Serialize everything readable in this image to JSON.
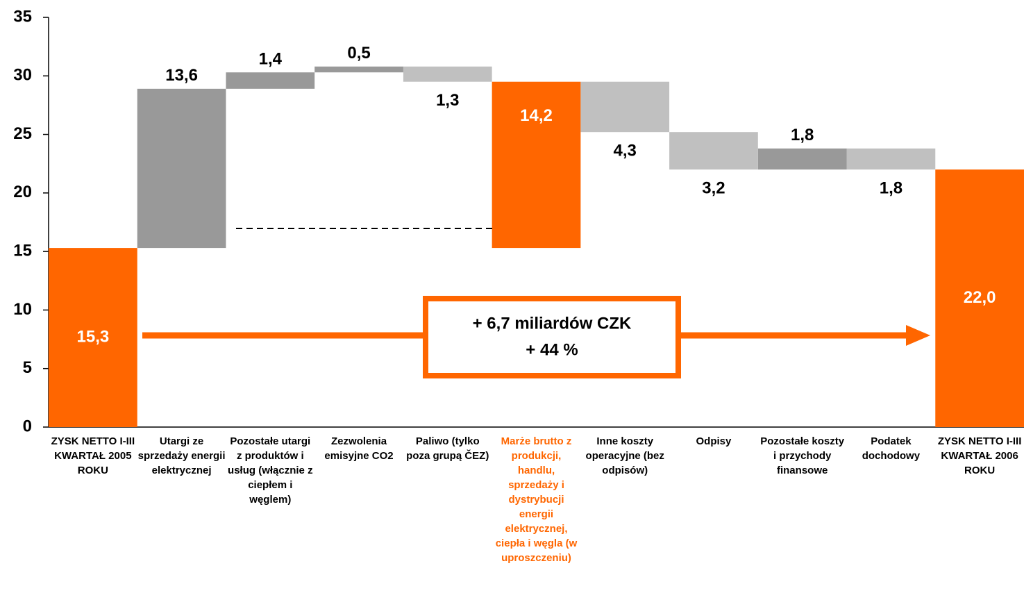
{
  "chart_data": {
    "type": "waterfall",
    "categories": [
      "ZYSK NETTO I-III KWARTAŁ 2005 ROKU",
      "Utargi ze sprzedaży energii elektrycznej",
      "Pozostałe utargi z produktów i usług (włącznie z ciepłem i węglem)",
      "Zezwolenia emisyjne CO2",
      "Paliwo (tylko poza grupą ČEZ)",
      "Marże brutto z produkcji, handlu, sprzedaży i dystrybucji energii elektrycznej, ciepła i węgla (w uproszczeniu)",
      "Inne koszty operacyjne (bez odpisów)",
      "Odpisy",
      "Pozostałe koszty i przychody finansowe",
      "Podatek dochodowy",
      "ZYSK NETTO I-III KWARTAŁ 2006 ROKU"
    ],
    "values": [
      15.3,
      13.6,
      1.4,
      0.5,
      -1.3,
      14.2,
      -4.3,
      -3.2,
      1.8,
      -1.8,
      22.0
    ],
    "value_labels": [
      "15,3",
      "13,6",
      "1,4",
      "0,5",
      "1,3",
      "14,2",
      "4,3",
      "3,2",
      "1,8",
      "1,8",
      "22,0"
    ],
    "kinds": [
      "total",
      "delta",
      "delta",
      "delta",
      "delta",
      "subtotal",
      "delta",
      "delta",
      "delta",
      "delta",
      "total"
    ],
    "colors": [
      "#ff6600",
      "#999999",
      "#999999",
      "#999999",
      "#c0c0c0",
      "#ff6600",
      "#c0c0c0",
      "#c0c0c0",
      "#999999",
      "#c0c0c0",
      "#ff6600"
    ],
    "ylim": [
      0,
      35
    ],
    "yticks": [
      0,
      5,
      10,
      15,
      20,
      25,
      30,
      35
    ],
    "annotation": [
      "+ 6,7 miliardów CZK",
      "+ 44 %"
    ]
  }
}
